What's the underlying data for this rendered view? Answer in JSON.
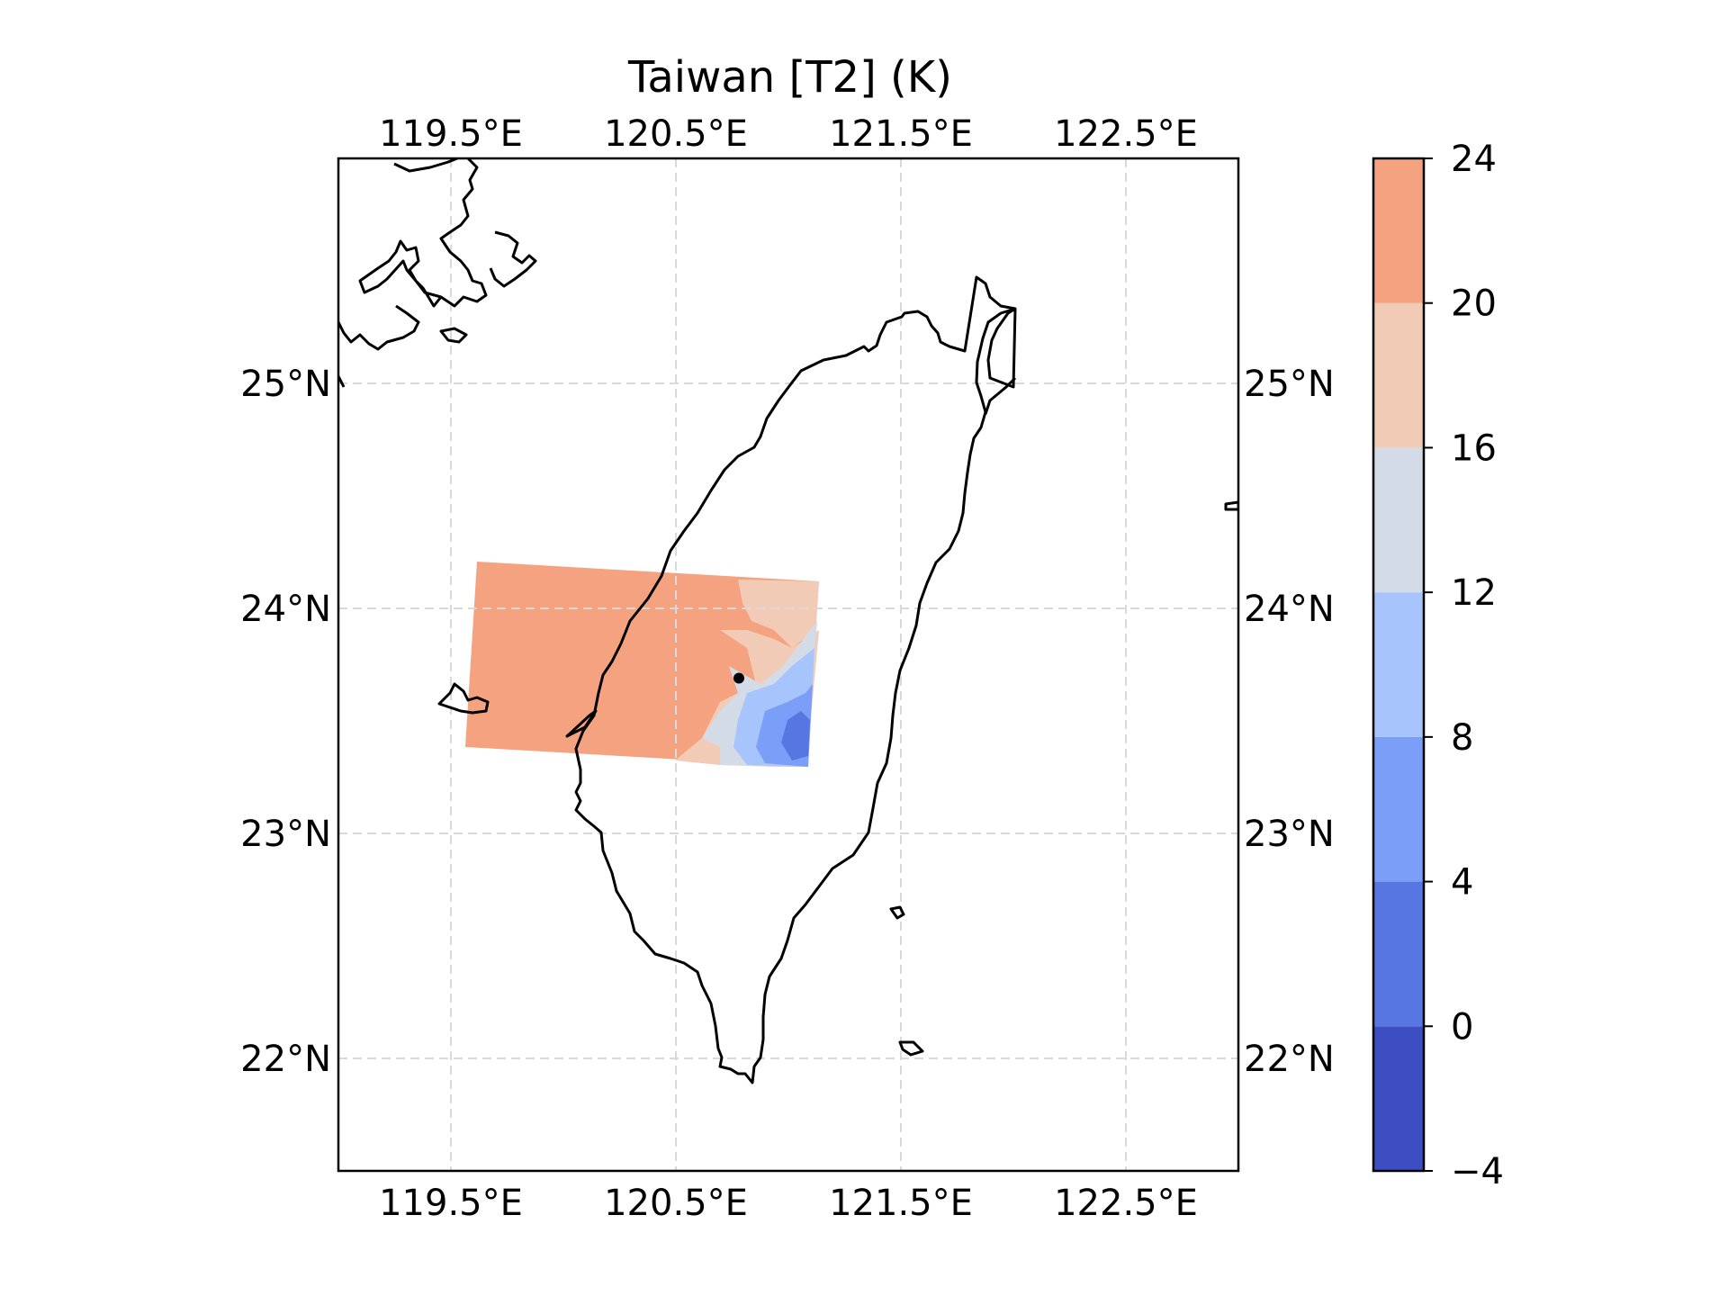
{
  "title": "Taiwan [T2] (K)",
  "map": {
    "lon_range": [
      119,
      123
    ],
    "lat_range": [
      21.5,
      26
    ],
    "gridlines": "dashed",
    "lon_ticks_top": [
      "119.5°E",
      "120.5°E",
      "121.5°E",
      "122.5°E"
    ],
    "lon_ticks_bottom": [
      "119.5°E",
      "120.5°E",
      "121.5°E",
      "122.5°E"
    ],
    "lat_ticks_left": [
      "25°N",
      "24°N",
      "23°N",
      "22°N"
    ],
    "lat_ticks_right": [
      "25°N",
      "24°N",
      "23°N",
      "22°N"
    ],
    "lon_tick_values": [
      119.5,
      120.5,
      121.5,
      122.5
    ],
    "lat_tick_values": [
      25,
      24,
      23,
      22
    ],
    "marker": {
      "lon": 120.78,
      "lat": 23.69
    }
  },
  "colorbar": {
    "ticks": [
      "24",
      "20",
      "16",
      "12",
      "8",
      "4",
      "0",
      "−4"
    ],
    "levels": [
      -4,
      0,
      4,
      8,
      12,
      16,
      20,
      24
    ],
    "colors": [
      "#3c4ec2",
      "#5776e2",
      "#7b9ff9",
      "#a8c4fd",
      "#d3dbe7",
      "#f2cbb7",
      "#f4a27f"
    ]
  },
  "colors": {
    "land_outline": "#000000",
    "grid": "#d9d9d9"
  }
}
